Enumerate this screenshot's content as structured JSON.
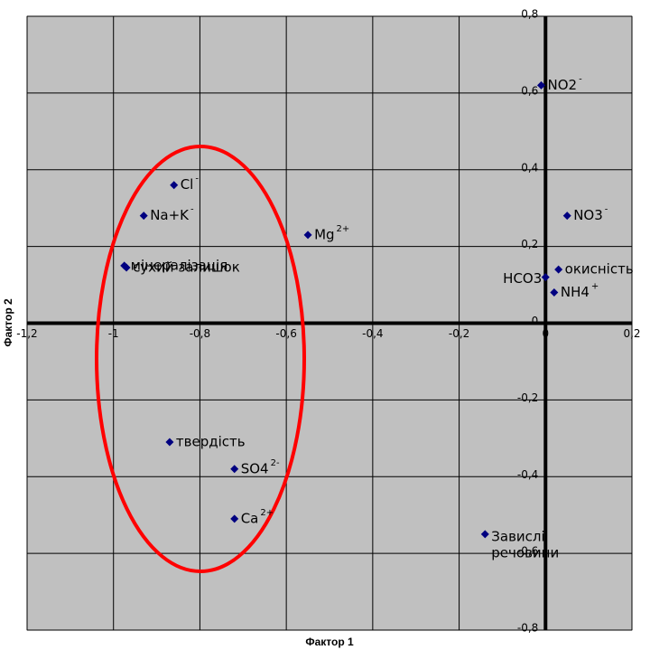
{
  "chart_data": {
    "type": "scatter",
    "x_label": "Фактор 1",
    "y_label": "Фактор 2",
    "xlim": [
      -1.2,
      0.2
    ],
    "ylim": [
      -0.8,
      0.8
    ],
    "xticks": [
      {
        "value": -1.2,
        "label": "-1,2"
      },
      {
        "value": -1,
        "label": "-1"
      },
      {
        "value": -0.8,
        "label": "-0,8"
      },
      {
        "value": -0.6,
        "label": "-0,6"
      },
      {
        "value": -0.4,
        "label": "-0,4"
      },
      {
        "value": -0.2,
        "label": "-0,2"
      },
      0,
      {
        "value": 0.2,
        "label": "0,2"
      }
    ],
    "yticks": [
      {
        "value": -0.8,
        "label": "-0,8"
      },
      {
        "value": -0.6,
        "label": "-0,6"
      },
      {
        "value": -0.4,
        "label": "-0,4"
      },
      {
        "value": -0.2,
        "label": "-0,2"
      },
      0,
      {
        "value": 0.2,
        "label": "0,2"
      },
      {
        "value": 0.4,
        "label": "0,4"
      },
      {
        "value": 0.6,
        "label": "0,6"
      },
      {
        "value": 0.8,
        "label": "0,8"
      }
    ],
    "grid": true,
    "color": "#000080",
    "points": [
      {
        "lines": [
          "NO2"
        ],
        "sup": "-",
        "x": -0.01,
        "y": 0.62
      },
      {
        "lines": [
          "Cl"
        ],
        "sup": "-",
        "x": -0.86,
        "y": 0.36
      },
      {
        "lines": [
          "Na+K"
        ],
        "sup": "-",
        "x": -0.93,
        "y": 0.28
      },
      {
        "lines": [
          "Mg"
        ],
        "sup": "2+",
        "x": -0.55,
        "y": 0.23
      },
      {
        "lines": [
          "мінералізація"
        ],
        "x": -0.975,
        "y": 0.15
      },
      {
        "lines": [
          "сухий залишок"
        ],
        "x": -0.97,
        "y": 0.145
      },
      {
        "lines": [
          "NO3"
        ],
        "sup": "-",
        "x": 0.05,
        "y": 0.28
      },
      {
        "lines": [
          "окисність"
        ],
        "x": 0.03,
        "y": 0.14
      },
      {
        "lines": [
          "HCO3"
        ],
        "x": 0.0,
        "y": 0.12
      },
      {
        "lines": [
          "NH4"
        ],
        "sup": "+",
        "x": 0.02,
        "y": 0.08
      },
      {
        "lines": [
          "твердість"
        ],
        "x": -0.87,
        "y": -0.31
      },
      {
        "lines": [
          "SO4"
        ],
        "sup": "2-",
        "x": -0.72,
        "y": -0.38
      },
      {
        "lines": [
          "Ca"
        ],
        "sup": "2+",
        "x": -0.72,
        "y": -0.51
      },
      {
        "lines": [
          "Завислі",
          "речовини"
        ],
        "x": -0.14,
        "y": -0.55
      }
    ]
  }
}
